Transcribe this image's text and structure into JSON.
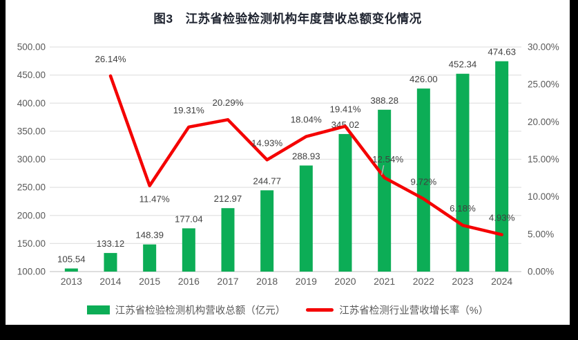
{
  "chart_data": {
    "type": "bar+line",
    "title": "图3　江苏省检验检测机构年度营收总额变化情况",
    "categories": [
      "2013",
      "2014",
      "2015",
      "2016",
      "2017",
      "2018",
      "2019",
      "2020",
      "2021",
      "2022",
      "2023",
      "2024"
    ],
    "series": [
      {
        "name": "江苏省检验检测机构营收总额（亿元）",
        "type": "bar",
        "axis": "left",
        "color": "#0cad56",
        "values": [
          105.54,
          133.12,
          148.39,
          177.04,
          212.97,
          244.77,
          288.93,
          345.02,
          388.28,
          426.0,
          452.34,
          474.63
        ],
        "labels": [
          "105.54",
          "133.12",
          "148.39",
          "177.04",
          "212.97",
          "244.77",
          "288.93",
          "345.02",
          "388.28",
          "426.00",
          "452.34",
          "474.63"
        ]
      },
      {
        "name": "江苏省检测行业营收增长率（%）",
        "type": "line",
        "axis": "right",
        "color": "#f40000",
        "values": [
          null,
          26.14,
          11.47,
          19.31,
          20.29,
          14.93,
          18.04,
          19.41,
          12.54,
          9.72,
          6.18,
          4.93
        ],
        "labels": [
          null,
          "26.14%",
          "11.47%",
          "19.31%",
          "20.29%",
          "14.93%",
          "18.04%",
          "19.41%",
          "12.54%",
          "9.72%",
          "6.18%",
          "4.93%"
        ],
        "label_placement": [
          null,
          "above",
          "below",
          "above",
          "above",
          "above",
          "above",
          "above",
          "above-leader",
          "above",
          "above",
          "above"
        ]
      }
    ],
    "left_axis": {
      "min": 100,
      "max": 500,
      "step": 50,
      "tick_labels": [
        "100.00",
        "150.00",
        "200.00",
        "250.00",
        "300.00",
        "350.00",
        "400.00",
        "450.00",
        "500.00"
      ]
    },
    "right_axis": {
      "min": 0,
      "max": 30,
      "step": 5,
      "tick_labels": [
        "0.00%",
        "5.00%",
        "10.00%",
        "15.00%",
        "20.00%",
        "25.00%",
        "30.00%"
      ]
    },
    "legend_position": "bottom",
    "grid": true
  },
  "colors": {
    "bar": "#0cad56",
    "line": "#f40000",
    "gridline": "#e2e2e2",
    "axis_line": "#c9c9c9",
    "tick_text": "#595959",
    "data_label": "#3f3f3f",
    "leader": "#b5b5b5",
    "title_text": "#1f2430",
    "panel_background": "#ffffff",
    "page_background": "#000000"
  }
}
